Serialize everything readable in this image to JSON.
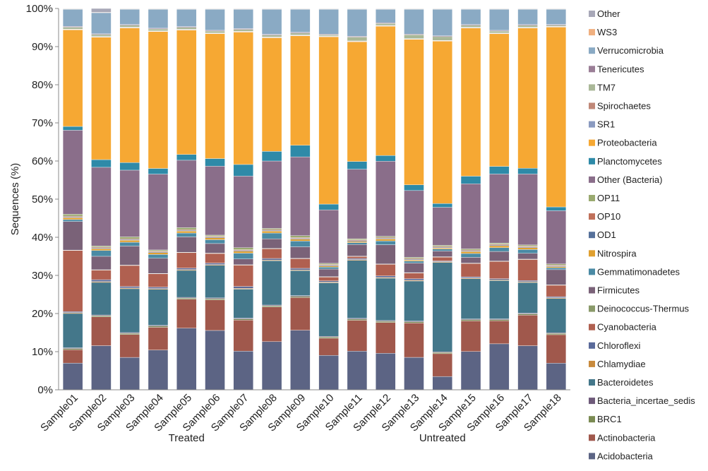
{
  "chart_data": {
    "type": "bar",
    "stacked": true,
    "normalized": true,
    "title": "",
    "xlabel": "",
    "ylabel": "Sequences (%)",
    "ylim": [
      0,
      100
    ],
    "yticks": [
      "0%",
      "10%",
      "20%",
      "30%",
      "40%",
      "50%",
      "60%",
      "70%",
      "80%",
      "90%",
      "100%"
    ],
    "categories": [
      "Sample01",
      "Sample02",
      "Sample03",
      "Sample04",
      "Sample05",
      "Sample06",
      "Sample07",
      "Sample08",
      "Sample09",
      "Sample10",
      "Sample11",
      "Sample12",
      "Sample13",
      "Sample14",
      "Sample15",
      "Sample16",
      "Sample17",
      "Sample18"
    ],
    "groups": [
      {
        "label": "Treated",
        "from": 0,
        "to": 8
      },
      {
        "label": "Untreated",
        "from": 9,
        "to": 17
      }
    ],
    "series": [
      {
        "name": "Acidobacteria",
        "color": "#5c6484",
        "values": [
          7,
          11.5,
          8.5,
          10.5,
          16,
          15.5,
          10,
          12.5,
          15.5,
          9,
          10,
          9.5,
          8.5,
          3.5,
          10,
          12,
          11.5,
          7
        ]
      },
      {
        "name": "Actinobacteria",
        "color": "#a0584c",
        "values": [
          3.5,
          7.5,
          6,
          6,
          7.5,
          8,
          8,
          9,
          8.5,
          4.5,
          8,
          8,
          9,
          6,
          8,
          6,
          8,
          7.5
        ]
      },
      {
        "name": "BRC1",
        "color": "#7a8a52",
        "values": [
          0.3,
          0.3,
          0.3,
          0.3,
          0.3,
          0.3,
          0.3,
          0.3,
          0.3,
          0.3,
          0.3,
          0.3,
          0.3,
          0.3,
          0.3,
          0.3,
          0.3,
          0.3
        ]
      },
      {
        "name": "Bacteria_incertae_sedis",
        "color": "#6e5a7a",
        "values": [
          0.2,
          0.2,
          0.2,
          0.2,
          0.2,
          0.2,
          0.2,
          0.2,
          0.2,
          0.2,
          0.2,
          0.2,
          0.2,
          0.2,
          0.2,
          0.2,
          0.2,
          0.2
        ]
      },
      {
        "name": "Bacteroidetes",
        "color": "#44778a",
        "values": [
          9,
          8.5,
          11.5,
          9.5,
          7,
          8.5,
          7.5,
          11.5,
          6.5,
          14,
          15,
          11,
          10.5,
          23.5,
          10.5,
          10,
          8,
          9
        ]
      },
      {
        "name": "Chlamydiae",
        "color": "#c88a3c",
        "values": [
          0.2,
          0.2,
          0.2,
          0.2,
          0.2,
          0.2,
          0.2,
          0.2,
          0.2,
          0.2,
          0.2,
          0.2,
          0.2,
          0.2,
          0.2,
          0.2,
          0.2,
          0.2
        ]
      },
      {
        "name": "Chloroflexi",
        "color": "#5a6a9a",
        "values": [
          0.3,
          0.5,
          0.4,
          0.4,
          0.4,
          0.4,
          0.5,
          0.4,
          0.4,
          0.3,
          0.3,
          0.4,
          0.4,
          0.2,
          0.3,
          0.3,
          0.3,
          0.3
        ]
      },
      {
        "name": "Cyanobacteria",
        "color": "#b06050",
        "values": [
          16,
          2.5,
          5.5,
          3.5,
          4,
          2.5,
          5.5,
          2.5,
          2.5,
          1,
          0.5,
          3,
          1.5,
          1,
          3.5,
          4.5,
          5.5,
          3
        ]
      },
      {
        "name": "Deinococcus-Thermus",
        "color": "#8a9a6a",
        "values": [
          0.1,
          0.1,
          0.1,
          0.1,
          0.1,
          0.1,
          0.1,
          0.1,
          0.1,
          0.1,
          0.1,
          0.1,
          0.1,
          0.1,
          0.1,
          0.1,
          0.1,
          0.1
        ]
      },
      {
        "name": "Firmicutes",
        "color": "#7a6278",
        "values": [
          7.5,
          3.5,
          5,
          4,
          4,
          2.5,
          1.5,
          2.5,
          3,
          2,
          3,
          5,
          2.5,
          1.5,
          1.5,
          2.5,
          1.5,
          4
        ]
      },
      {
        "name": "Gemmatimonadetes",
        "color": "#4a8aa4",
        "values": [
          0.5,
          1.5,
          1,
          1,
          1,
          1,
          1.5,
          1.5,
          1.5,
          0.5,
          0.5,
          1,
          0.5,
          0.5,
          1,
          1,
          1,
          0.5
        ]
      },
      {
        "name": "Nitrospira",
        "color": "#e0a030",
        "values": [
          0.5,
          0.5,
          0.5,
          0.5,
          0.5,
          0.5,
          0.5,
          0.5,
          0.5,
          0.3,
          0.3,
          0.5,
          0.3,
          0.3,
          0.5,
          0.5,
          0.5,
          0.3
        ]
      },
      {
        "name": "OD1",
        "color": "#55709a",
        "values": [
          0.2,
          0.2,
          0.2,
          0.2,
          0.2,
          0.2,
          0.2,
          0.2,
          0.2,
          0.2,
          0.2,
          0.2,
          0.2,
          0.2,
          0.2,
          0.2,
          0.2,
          0.2
        ]
      },
      {
        "name": "OP10",
        "color": "#c0705a",
        "values": [
          0.2,
          0.2,
          0.2,
          0.2,
          0.2,
          0.2,
          0.2,
          0.2,
          0.2,
          0.2,
          0.2,
          0.2,
          0.2,
          0.2,
          0.2,
          0.2,
          0.2,
          0.2
        ]
      },
      {
        "name": "OP11",
        "color": "#9aaa70",
        "values": [
          0.5,
          0.3,
          0.5,
          0.3,
          0.5,
          0.3,
          0.5,
          0.3,
          0.5,
          0.3,
          0.3,
          0.3,
          0.3,
          0.3,
          0.3,
          0.3,
          0.3,
          0.3
        ]
      },
      {
        "name": "Other (Bacteria)",
        "color": "#8a6e8a",
        "values": [
          22,
          20.5,
          17.5,
          20,
          17.5,
          18,
          18.5,
          17.5,
          20.5,
          14,
          18,
          19.5,
          17.5,
          10,
          17,
          18,
          18.5,
          14
        ]
      },
      {
        "name": "Planctomycetes",
        "color": "#2e8aa8",
        "values": [
          1,
          2,
          2,
          1.5,
          1.5,
          2,
          3,
          2.5,
          3,
          1.5,
          2,
          1.5,
          1.5,
          1,
          2,
          2,
          1.5,
          1
        ]
      },
      {
        "name": "Proteobacteria",
        "color": "#f6a833",
        "values": [
          25.3,
          31.9,
          35.3,
          36.1,
          32.3,
          32.6,
          34.2,
          29.5,
          28.5,
          43.8,
          31,
          33.6,
          38.1,
          42.7,
          38.7,
          34.6,
          36.6,
          47.3
        ]
      },
      {
        "name": "SR1",
        "color": "#8a9ac0",
        "values": [
          0.1,
          0.1,
          0.1,
          0.1,
          0.1,
          0.1,
          0.1,
          0.1,
          0.1,
          0.1,
          0.1,
          0.1,
          0.1,
          0.1,
          0.1,
          0.1,
          0.1,
          0.1
        ]
      },
      {
        "name": "Spirochaetes",
        "color": "#c08878",
        "values": [
          0.1,
          0.1,
          0.1,
          0.1,
          0.1,
          0.1,
          0.1,
          0.1,
          0.1,
          0.1,
          0.1,
          0.1,
          0.1,
          0.1,
          0.1,
          0.1,
          0.1,
          0.1
        ]
      },
      {
        "name": "TM7",
        "color": "#aab898",
        "values": [
          0.5,
          0.5,
          0.5,
          0.5,
          0.5,
          0.5,
          0.5,
          0.5,
          0.5,
          0.3,
          1,
          0.5,
          1,
          1,
          0.5,
          0.5,
          0.5,
          0.3
        ]
      },
      {
        "name": "Tenericutes",
        "color": "#9a7e96",
        "values": [
          0.2,
          0.2,
          0.2,
          0.2,
          0.2,
          0.2,
          0.2,
          0.2,
          0.2,
          0.2,
          0.2,
          0.2,
          0.2,
          0.2,
          0.2,
          0.2,
          0.2,
          0.2
        ]
      },
      {
        "name": "Verrucomicrobia",
        "color": "#8aaac4",
        "values": [
          4.5,
          5.5,
          4,
          5,
          4.5,
          5.5,
          5,
          6.5,
          6,
          6.5,
          7,
          3.5,
          6.5,
          7,
          4,
          5.5,
          4,
          4
        ]
      },
      {
        "name": "WS3",
        "color": "#f0b080",
        "values": [
          0.1,
          0.1,
          0.1,
          0.1,
          0.1,
          0.1,
          0.1,
          0.1,
          0.1,
          0.1,
          0.1,
          0.1,
          0.1,
          0.1,
          0.1,
          0.1,
          0.1,
          0.1
        ]
      },
      {
        "name": "Other",
        "color": "#a8a8b8",
        "values": [
          0.1,
          1,
          0.1,
          0.1,
          0.1,
          0.1,
          0.1,
          0.1,
          0.1,
          0.1,
          0.1,
          0.1,
          0.1,
          0.1,
          0.1,
          0.1,
          0.1,
          0.1
        ]
      }
    ],
    "legend_order": [
      "Other",
      "WS3",
      "Verrucomicrobia",
      "Tenericutes",
      "TM7",
      "Spirochaetes",
      "SR1",
      "Proteobacteria",
      "Planctomycetes",
      "Other (Bacteria)",
      "OP11",
      "OP10",
      "OD1",
      "Nitrospira",
      "Gemmatimonadetes",
      "Firmicutes",
      "Deinococcus-Thermus",
      "Cyanobacteria",
      "Chloroflexi",
      "Chlamydiae",
      "Bacteroidetes",
      "Bacteria_incertae_sedis",
      "BRC1",
      "Actinobacteria",
      "Acidobacteria"
    ],
    "legend_position": "right",
    "grid": false
  }
}
